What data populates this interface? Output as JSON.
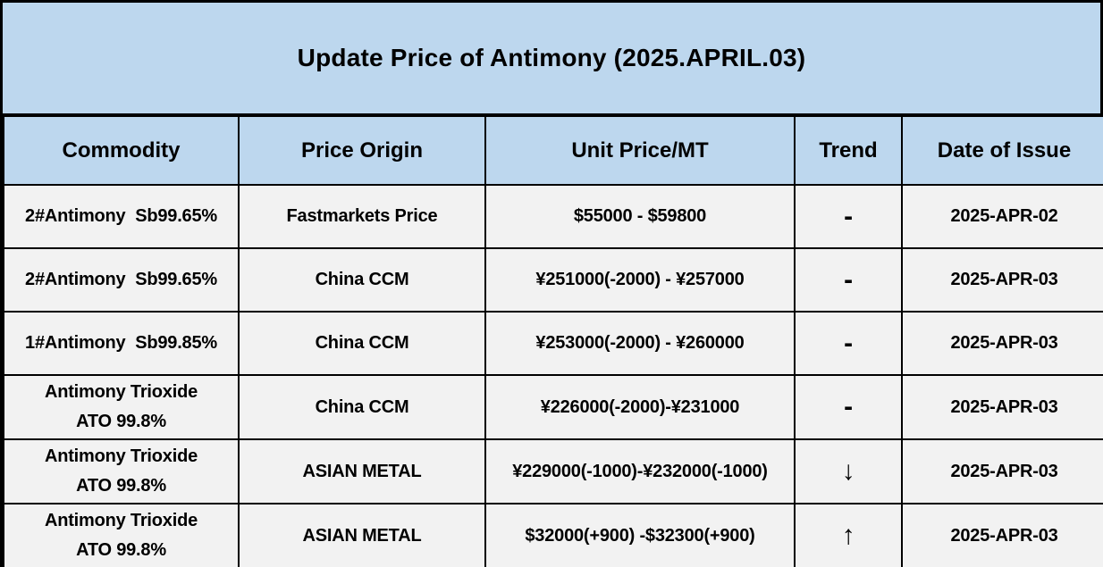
{
  "title": "Update Price of Antimony (2025.APRIL.03)",
  "colors": {
    "title_background": "#BDD7EE",
    "header_background": "#BDD7EE",
    "row_background": "#F2F2F2",
    "border": "#000000",
    "text": "#000000"
  },
  "table": {
    "columns": [
      "Commodity",
      "Price Origin",
      "Unit Price/MT",
      "Trend",
      "Date of Issue"
    ],
    "rows": [
      {
        "commodity": "2#Antimony  Sb99.65%",
        "price_origin": "Fastmarkets Price",
        "unit_price": "$55000 - $59800",
        "trend": "-",
        "date_of_issue": "2025-APR-02"
      },
      {
        "commodity": "2#Antimony  Sb99.65%",
        "price_origin": "China CCM",
        "unit_price": "¥251000(-2000) - ¥257000",
        "trend": "-",
        "date_of_issue": "2025-APR-03"
      },
      {
        "commodity": "1#Antimony  Sb99.85%",
        "price_origin": "China CCM",
        "unit_price": "¥253000(-2000) - ¥260000",
        "trend": "-",
        "date_of_issue": "2025-APR-03"
      },
      {
        "commodity": "Antimony Trioxide\nATO 99.8%",
        "price_origin": "China CCM",
        "unit_price": "¥226000(-2000)-¥231000",
        "trend": "-",
        "date_of_issue": "2025-APR-03"
      },
      {
        "commodity": "Antimony Trioxide\nATO 99.8%",
        "price_origin": "ASIAN METAL",
        "unit_price": "¥229000(-1000)-¥232000(-1000)",
        "trend": "↓",
        "date_of_issue": "2025-APR-03"
      },
      {
        "commodity": "Antimony Trioxide\nATO 99.8%",
        "price_origin": "ASIAN METAL",
        "unit_price": "$32000(+900) -$32300(+900)",
        "trend": "↑",
        "date_of_issue": "2025-APR-03"
      }
    ]
  }
}
